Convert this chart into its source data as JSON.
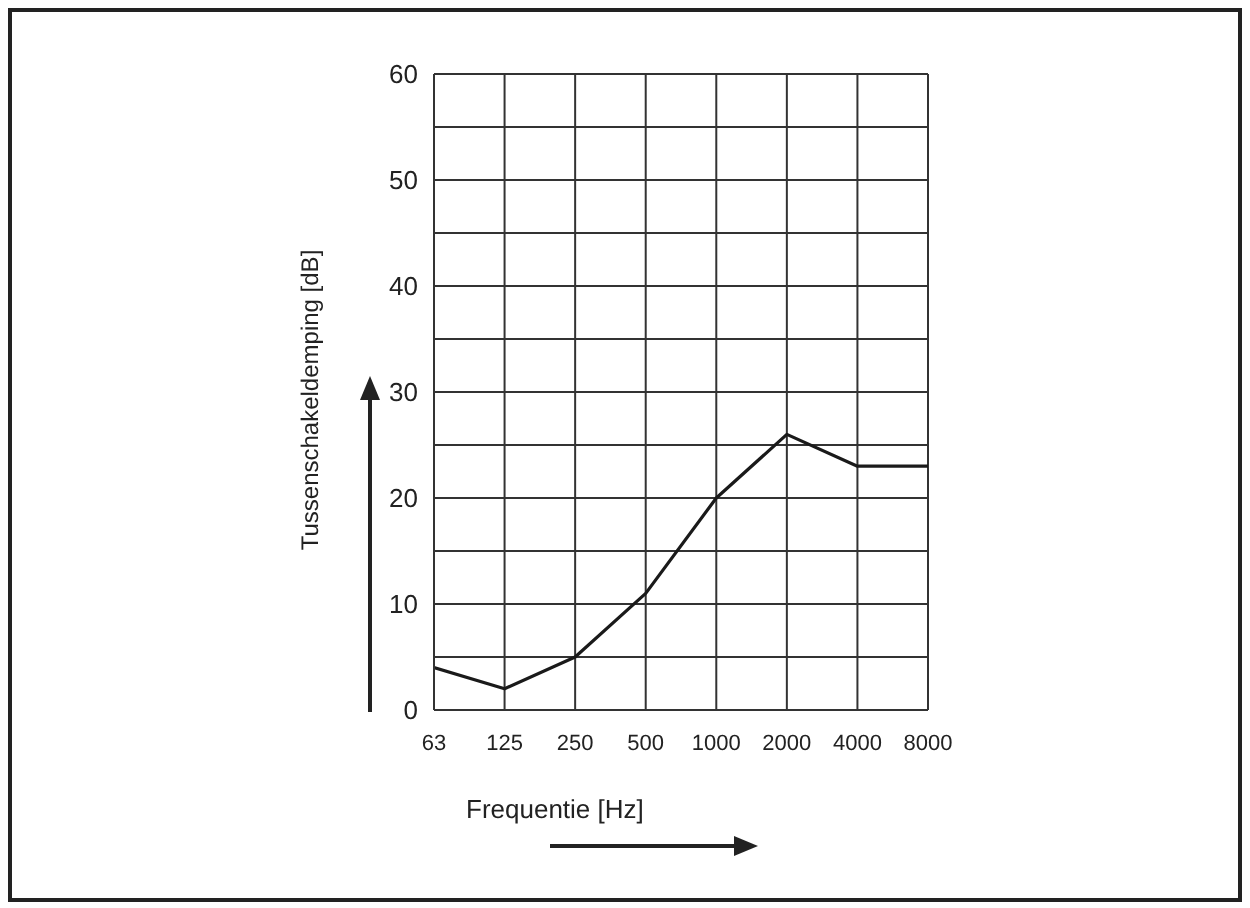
{
  "chart_data": {
    "type": "line",
    "xlabel": "Frequentie [Hz]",
    "ylabel": "Tussenschakeldemping [dB]",
    "categories": [
      "63",
      "125",
      "250",
      "500",
      "1000",
      "2000",
      "4000",
      "8000"
    ],
    "series": [
      {
        "color": "#1a1a1a",
        "values": [
          4,
          2,
          5,
          11,
          20,
          26,
          23,
          23
        ]
      }
    ],
    "ylim": [
      0,
      60
    ],
    "yticks": [
      0,
      {
        "value": 5,
        "label": null
      },
      10,
      {
        "value": 15,
        "label": null
      },
      20,
      {
        "value": 25,
        "label": null
      },
      30,
      {
        "value": 35,
        "label": null
      },
      40,
      {
        "value": 45,
        "label": null
      },
      50,
      {
        "value": 55,
        "label": null
      },
      60
    ],
    "grid": true,
    "marker": "none",
    "line_style": "solid",
    "legend": false
  }
}
